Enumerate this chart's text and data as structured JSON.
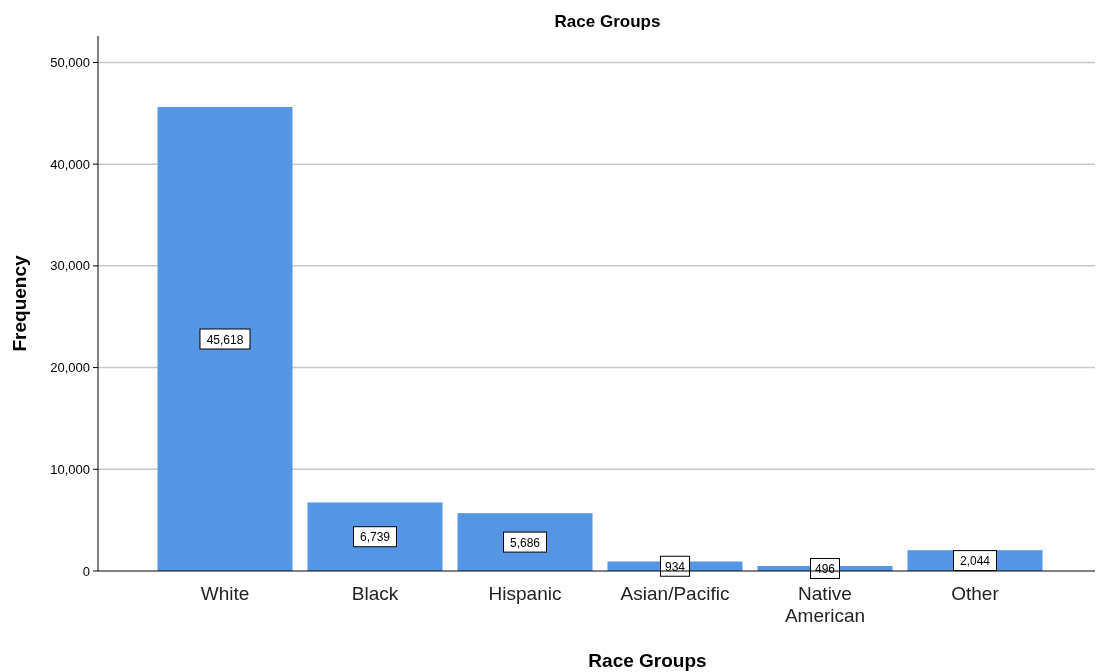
{
  "chart_data": {
    "type": "bar",
    "title": "Race Groups",
    "xlabel": "Race Groups",
    "ylabel": "Frequency",
    "categories": [
      "White",
      "Black",
      "Hispanic",
      "Asian/Pacific",
      "Native American",
      "Other"
    ],
    "values": [
      45618,
      6739,
      5686,
      934,
      496,
      2044
    ],
    "color": "#5496e3",
    "ylim": [
      0,
      52600
    ],
    "yticks": [
      {
        "value": 0,
        "label": "0"
      },
      {
        "value": 10000,
        "label": "10,000"
      },
      {
        "value": 20000,
        "label": "20,000"
      },
      {
        "value": 30000,
        "label": "30,000"
      },
      {
        "value": 40000,
        "label": "40,000"
      },
      {
        "value": 50000,
        "label": "50,000"
      }
    ],
    "value_labels": [
      "45,618",
      "6,739",
      "5,686",
      "934",
      "496",
      "2,044"
    ],
    "grid": "y"
  }
}
